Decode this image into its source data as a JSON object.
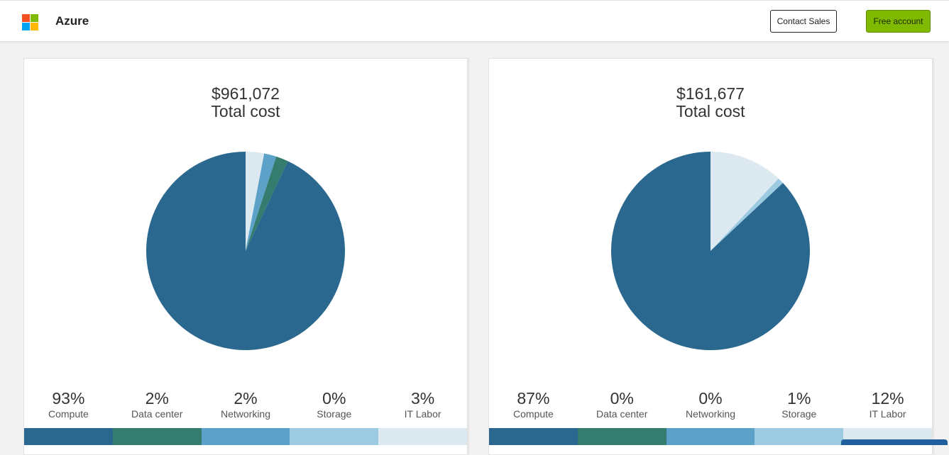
{
  "header": {
    "brand": "Azure",
    "contact_label": "Contact Sales",
    "free_label": "Free account",
    "logo_colors": [
      "#f25022",
      "#7fba00",
      "#00a4ef",
      "#ffb900"
    ]
  },
  "colors": {
    "compute": "#2b688f",
    "data_center": "#347c6d",
    "networking": "#5ba1c8",
    "storage": "#9ccbe1",
    "it_labor": "#dce9f1"
  },
  "panels": [
    {
      "total_amount": "$961,072",
      "total_label": "Total cost",
      "stats": [
        {
          "pct": "93%",
          "label": "Compute"
        },
        {
          "pct": "2%",
          "label": "Data center"
        },
        {
          "pct": "2%",
          "label": "Networking"
        },
        {
          "pct": "0%",
          "label": "Storage"
        },
        {
          "pct": "3%",
          "label": "IT Labor"
        }
      ]
    },
    {
      "total_amount": "$161,677",
      "total_label": "Total cost",
      "stats": [
        {
          "pct": "87%",
          "label": "Compute"
        },
        {
          "pct": "0%",
          "label": "Data center"
        },
        {
          "pct": "0%",
          "label": "Networking"
        },
        {
          "pct": "1%",
          "label": "Storage"
        },
        {
          "pct": "12%",
          "label": "IT Labor"
        }
      ]
    }
  ],
  "chart_data": [
    {
      "type": "pie",
      "categories": [
        "Compute",
        "Data center",
        "Networking",
        "Storage",
        "IT Labor"
      ],
      "values": [
        93,
        2,
        2,
        0,
        3
      ],
      "title": "$961,072 Total cost"
    },
    {
      "type": "pie",
      "categories": [
        "Compute",
        "Data center",
        "Networking",
        "Storage",
        "IT Labor"
      ],
      "values": [
        87,
        0,
        0,
        1,
        12
      ],
      "title": "$161,677 Total cost"
    }
  ]
}
